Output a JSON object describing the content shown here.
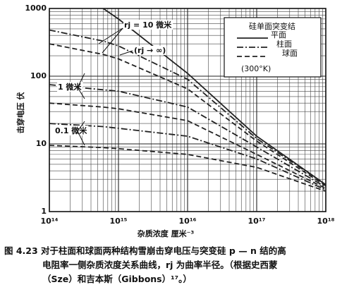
{
  "chart_data": {
    "type": "line",
    "log_x": true,
    "log_y": true,
    "grid": true,
    "minor_grid": true,
    "ylabel": "击穿电压  伏",
    "xlabel": "杂质浓度    厘米⁻³",
    "x": [
      100000000000000,
      600000000000000,
      1000000000000000,
      10000000000000000,
      100000000000000000,
      1000000000000000000
    ],
    "xlim": [
      100000000000000,
      1000000000000000000
    ],
    "xticks": [
      {
        "value": 100000000000000,
        "label": "10¹⁴"
      },
      {
        "value": 1000000000000000,
        "label": "10¹⁵"
      },
      {
        "value": 10000000000000000,
        "label": "10¹⁶"
      },
      {
        "value": 100000000000000000,
        "label": "10¹⁷"
      },
      {
        "value": 1000000000000000000,
        "label": "10¹⁸"
      }
    ],
    "ylim": [
      1,
      1000
    ],
    "yticks": [
      1,
      10,
      100,
      1000
    ],
    "series": [
      {
        "style": "solid",
        "color": "#222",
        "values": [
          null,
          1000,
          700,
          110,
          13,
          2.5
        ]
      },
      {
        "style": "dashdot",
        "color": "#222",
        "values": [
          480,
          330,
          280,
          90,
          12,
          2.5
        ]
      },
      {
        "style": "dashed",
        "color": "#222",
        "values": [
          300,
          210,
          180,
          65,
          11,
          2.4
        ]
      },
      {
        "style": "dashdot",
        "color": "#222",
        "values": [
          75,
          63,
          60,
          35,
          9,
          2.3
        ]
      },
      {
        "style": "dashed",
        "color": "#222",
        "values": [
          40,
          35,
          33,
          22,
          7,
          2.2
        ]
      },
      {
        "style": "dashdot",
        "color": "#222",
        "values": [
          20,
          18,
          17,
          13,
          6,
          2.1
        ]
      },
      {
        "style": "dashed",
        "color": "#222",
        "values": [
          9.5,
          8.8,
          8.5,
          7,
          4.5,
          2
        ]
      }
    ],
    "legend": {
      "title": "硅单面突变结",
      "items": [
        {
          "label": "平面",
          "style": "solid"
        },
        {
          "label": "柱面",
          "style": "dashdot"
        },
        {
          "label": "球面",
          "style": "dashed"
        }
      ],
      "note": "(300°K)"
    },
    "annotations": [
      "rj = 10 微米",
      "(rj → ∞)",
      "1 微米",
      "0.1 微米"
    ],
    "caption_lines": [
      "图 4.23   对于柱面和球面两种结构雪崩击穿电压与突变硅 p — n 结的高",
      "电阻率一侧杂质浓度关系曲线，rj 为曲率半径。（根据史西蒙",
      "（Sze）和吉本斯（Gibbons）¹⁷。）"
    ]
  }
}
